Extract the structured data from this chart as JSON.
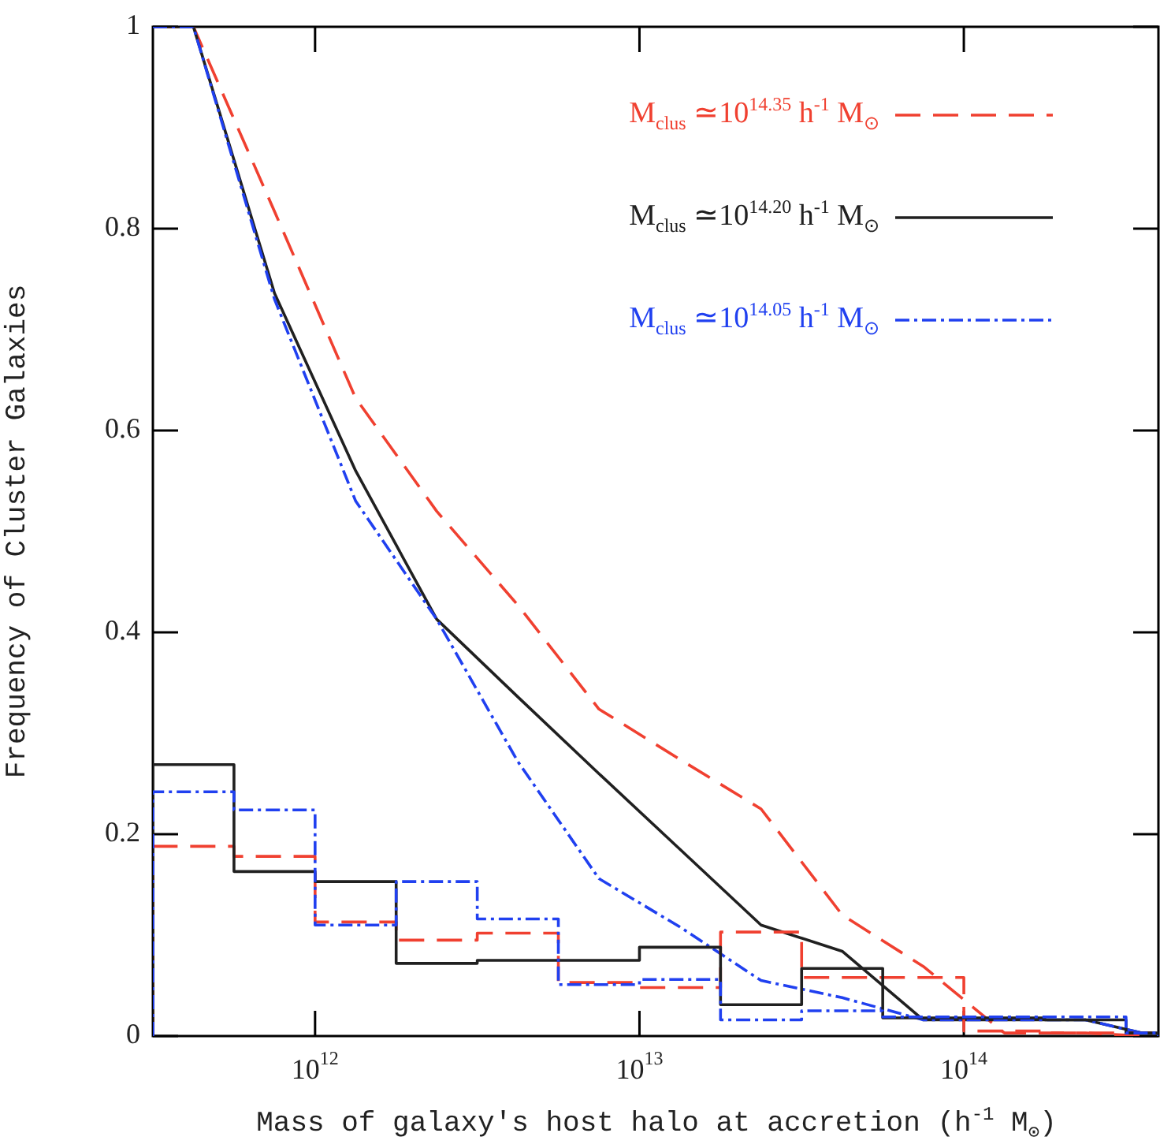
{
  "chart_data": {
    "type": "line",
    "xlabel": "Mass of galaxy's host halo at accretion (h$^{-1}$ M$_{⊙}$)",
    "ylabel": "Frequency of Cluster Galaxies",
    "log": "x",
    "grid": false,
    "legend": "top right",
    "xlim": [
      316200000000.0,
      398000000000000.0
    ],
    "xticks": [
      {
        "value": 1000000000000.0,
        "label": "10$^{12}$"
      },
      {
        "value": 10000000000000.0,
        "label": "10$^{13}$"
      },
      {
        "value": 100000000000000.0,
        "label": "10$^{14}$"
      }
    ],
    "ylim": [
      0,
      1
    ],
    "yticks": [
      0,
      0.2,
      0.4,
      0.6,
      0.8,
      1
    ],
    "x": [
      316200000000.0,
      421700000000.0,
      749900000000.0,
      1334000000000.0,
      2371000000000.0,
      4217000000000.0,
      7499000000000.0,
      13340000000000.0,
      23710000000000.0,
      42170000000000.0,
      74990000000000.0,
      133400000000000.0,
      237100000000000.0,
      354800000000000.0
    ],
    "bins": [
      316200000000.0,
      562300000000.0,
      1000000000000.0,
      1778000000000.0,
      3162000000000.0,
      5623000000000.0,
      10000000000000.0,
      17780000000000.0,
      31620000000000.0,
      56230000000000.0,
      100000000000000.0,
      177800000000000.0,
      316200000000000.0,
      398000000000000.0
    ],
    "series": [
      {
        "name": "M$_{clus}$ ≃10$^{14.35}$ h$^{-1}$ M$_{⊙}$",
        "color": "#f04030",
        "line_style": "dashed",
        "values": [
          1,
          1,
          0.817,
          0.632,
          0.52,
          0.427,
          0.324,
          0.274,
          0.225,
          0.12,
          0.069,
          0.003,
          0.003,
          0
        ]
      },
      {
        "name": "M$_{clus}$ ≃10$^{14.20}$ h$^{-1}$ M$_{⊙}$",
        "color": "#202020",
        "line_style": "solid",
        "values": [
          1,
          1,
          0.736,
          0.56,
          0.413,
          0.336,
          0.26,
          0.185,
          0.11,
          0.084,
          0.016,
          0.016,
          0.016,
          0.003
        ]
      },
      {
        "name": "M$_{clus}$ ≃10$^{14.05}$ h$^{-1}$ M$_{⊙}$",
        "color": "#2040f0",
        "line_style": "dashdot",
        "values": [
          1,
          1,
          0.73,
          0.53,
          0.413,
          0.272,
          0.156,
          0.108,
          0.055,
          0.038,
          0.016,
          0.016,
          0.016,
          0.003
        ]
      },
      {
        "type": "histogram",
        "color": "#f04030",
        "line_style": "dashed",
        "values": [
          0.188,
          0.178,
          0.113,
          0.095,
          0.102,
          0.053,
          0.048,
          0.103,
          0.058,
          0.058,
          0.005,
          0.003,
          0.003
        ]
      },
      {
        "type": "histogram",
        "color": "#202020",
        "line_style": "solid",
        "values": [
          0.269,
          0.163,
          0.153,
          0.072,
          0.075,
          0.075,
          0.088,
          0.031,
          0.067,
          0.018,
          0.018,
          0.016,
          0.003
        ]
      },
      {
        "type": "histogram",
        "color": "#2040f0",
        "line_style": "dashdot",
        "values": [
          0.242,
          0.224,
          0.11,
          0.153,
          0.116,
          0.051,
          0.056,
          0.016,
          0.025,
          0.019,
          0.019,
          0.019,
          0.003
        ]
      }
    ]
  }
}
